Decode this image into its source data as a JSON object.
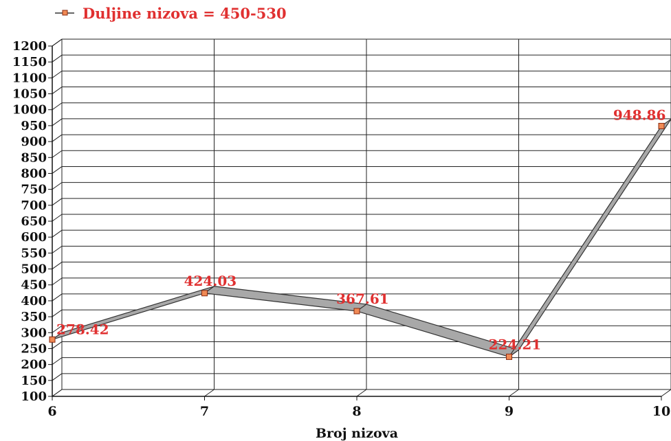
{
  "chart_data": {
    "type": "line",
    "title": "",
    "xlabel": "Broj nizova",
    "ylabel": "",
    "x": [
      6,
      7,
      8,
      9,
      10
    ],
    "series": [
      {
        "name": "Duljine nizova = 450-530",
        "values": [
          278.42,
          424.03,
          367.61,
          224.21,
          948.86
        ],
        "labels": [
          "278.42",
          "424.03",
          "367.61",
          "224.21",
          "948.86"
        ]
      }
    ],
    "xlim": [
      6,
      10
    ],
    "ylim": [
      100,
      1200
    ],
    "yticks": [
      100,
      150,
      200,
      250,
      300,
      350,
      400,
      450,
      500,
      550,
      600,
      650,
      700,
      750,
      800,
      850,
      900,
      950,
      1000,
      1050,
      1100,
      1150,
      1200
    ],
    "xticks": [
      6,
      7,
      8,
      9,
      10
    ],
    "grid": true,
    "legend_position": "top-left",
    "style": "3d-ribbon"
  },
  "colors": {
    "series_label": "#e03030",
    "marker_fill": "#f08a55",
    "marker_stroke": "#8a2a10",
    "ribbon_fill": "#a8a8a8",
    "ribbon_stroke": "#333333",
    "grid": "#222222",
    "axis": "#111111"
  }
}
